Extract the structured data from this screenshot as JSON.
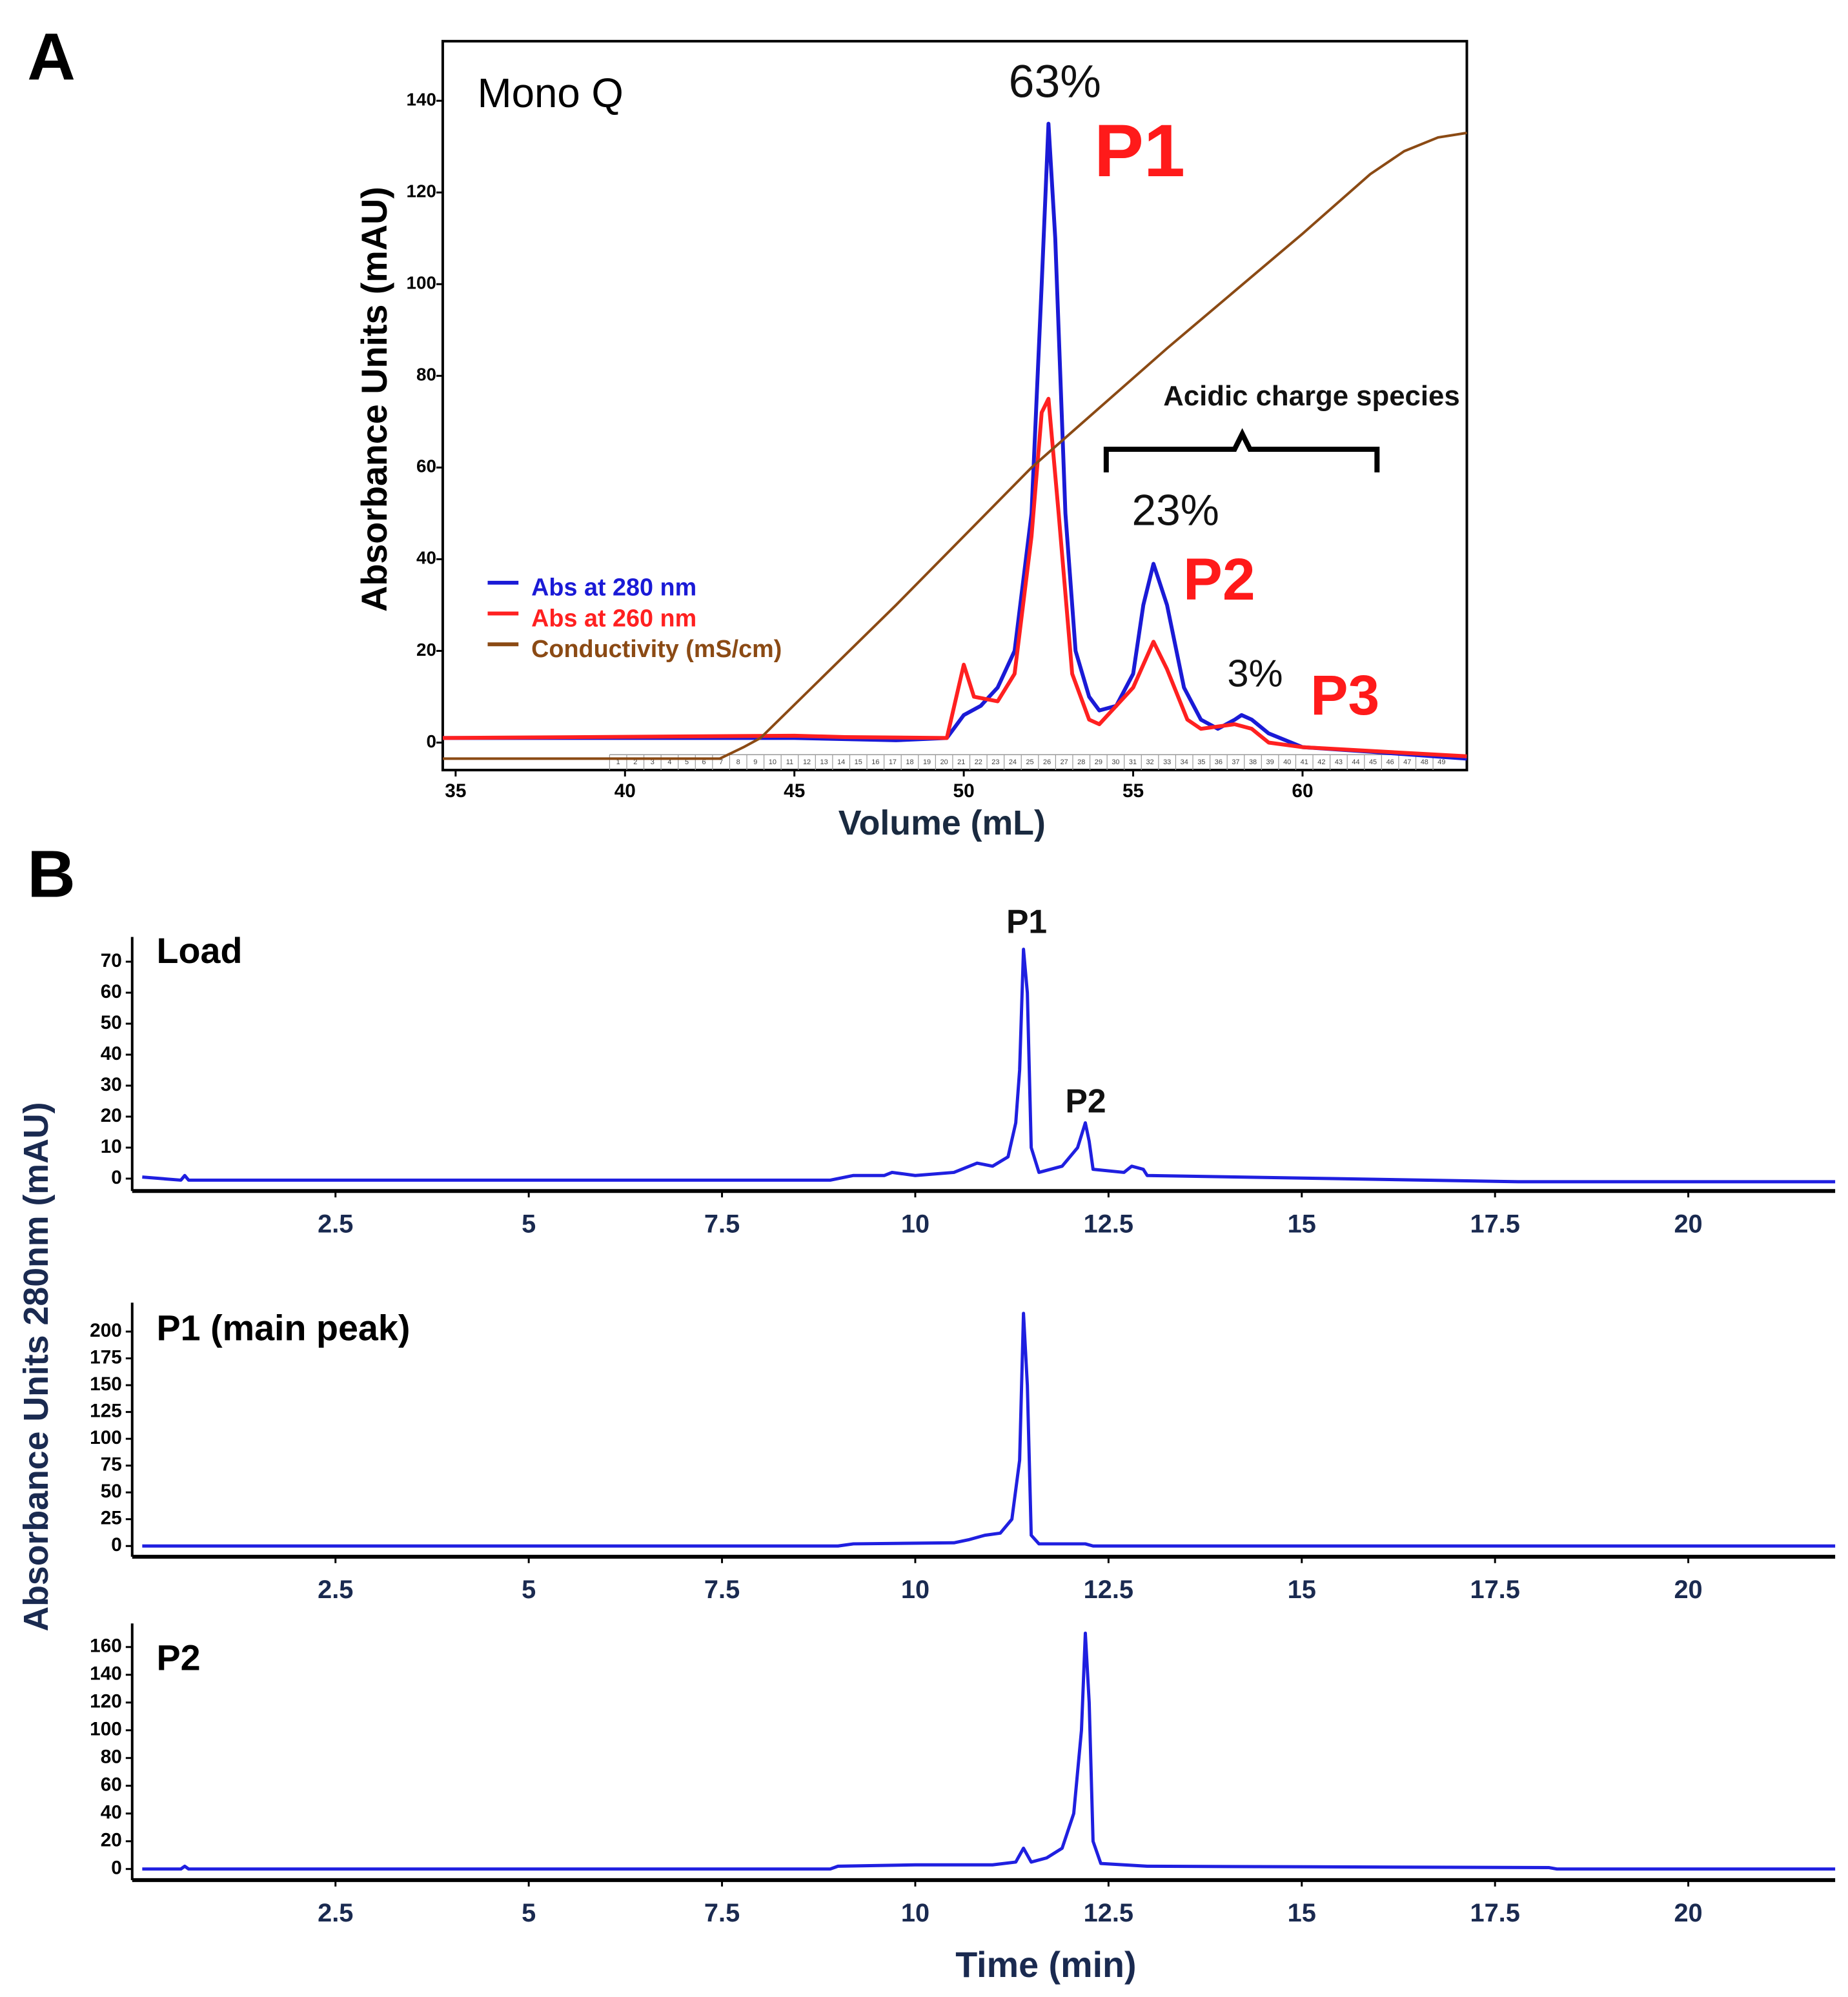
{
  "panel_a": {
    "label": "A"
  },
  "panel_b": {
    "label": "B",
    "ylabel": "Absorbance Units 280nm (mAU)",
    "xlabel": "Time (min)"
  },
  "chart_data": [
    {
      "type": "line",
      "title": "Mono Q",
      "xlabel": "Volume (mL)",
      "ylabel": "Absorbance Units (mAU)",
      "xlim": [
        34.62,
        64.85
      ],
      "ylim": [
        -6,
        153
      ],
      "xticks": [
        35,
        40,
        45,
        50,
        55,
        60
      ],
      "yticks": [
        0,
        20,
        40,
        60,
        80,
        100,
        120,
        140
      ],
      "legend": "left",
      "fractions": [
        1,
        2,
        3,
        4,
        5,
        6,
        7,
        8,
        9,
        10,
        11,
        12,
        13,
        14,
        15,
        16,
        17,
        18,
        19,
        20,
        21,
        22,
        23,
        24,
        25,
        26,
        27,
        28,
        29,
        30,
        31,
        32,
        33,
        34,
        35,
        36,
        37,
        38,
        39,
        40,
        41,
        42,
        43,
        44,
        45,
        46,
        47,
        48,
        49
      ],
      "annotations": [
        {
          "text": "63%",
          "color": "#111111"
        },
        {
          "text": "P1",
          "color": "#ff1a1a"
        },
        {
          "text": "Acidic charge species",
          "color": "#111111"
        },
        {
          "text": "23%",
          "color": "#111111"
        },
        {
          "text": "P2",
          "color": "#ff1a1a"
        },
        {
          "text": "3%",
          "color": "#111111"
        },
        {
          "text": "P3",
          "color": "#ff1a1a"
        }
      ],
      "series": [
        {
          "name": "Abs at 280 nm",
          "color": "#1a1ad6",
          "x": [
            34.62,
            40,
            45,
            48,
            49.5,
            50,
            50.5,
            51,
            51.5,
            52,
            52.3,
            52.5,
            52.7,
            53,
            53.3,
            53.7,
            54,
            54.5,
            55,
            55.3,
            55.6,
            56,
            56.5,
            57,
            57.5,
            58,
            58.2,
            58.5,
            59,
            60,
            62,
            64.85
          ],
          "values": [
            1,
            1,
            1,
            0.5,
            1,
            6,
            8,
            12,
            20,
            50,
            100,
            135,
            110,
            50,
            20,
            10,
            7,
            8,
            15,
            30,
            39,
            30,
            12,
            5,
            3,
            5,
            6,
            5,
            2,
            -1,
            -2,
            -3.5
          ]
        },
        {
          "name": "Abs at 260 nm",
          "color": "#ff2020",
          "x": [
            34.62,
            45,
            46.5,
            49.5,
            50,
            50.3,
            51,
            51.5,
            52,
            52.3,
            52.5,
            52.8,
            53.2,
            53.7,
            54,
            55,
            55.6,
            56,
            56.6,
            57,
            58,
            58.5,
            59,
            60,
            64.85
          ],
          "values": [
            1,
            1.5,
            1.2,
            1,
            17,
            10,
            9,
            15,
            45,
            72,
            75,
            50,
            15,
            5,
            4,
            12,
            22,
            16,
            5,
            3,
            4,
            3,
            0,
            -1,
            -3
          ]
        },
        {
          "name": "Conductivity (mS/cm)",
          "color": "#8b4a14",
          "x": [
            34.62,
            42.8,
            43.5,
            44,
            48,
            52,
            56,
            60,
            62,
            63,
            64,
            64.85
          ],
          "values": [
            -3.5,
            -3.5,
            -1,
            1,
            30,
            60,
            86,
            111,
            124,
            129,
            132,
            133
          ]
        }
      ]
    },
    {
      "type": "line",
      "title": "Load",
      "xlim": [
        -0.13,
        21.9
      ],
      "ylim": [
        -4,
        78
      ],
      "xticks": [
        2.5,
        5,
        7.5,
        10,
        12.5,
        15,
        17.5,
        20
      ],
      "yticks": [
        0,
        10,
        20,
        30,
        40,
        50,
        60,
        70
      ],
      "annotations": [
        {
          "text": "P1",
          "color": "#111111"
        },
        {
          "text": "P2",
          "color": "#111111"
        }
      ],
      "x": [
        0,
        0.5,
        0.55,
        0.6,
        8.9,
        9.2,
        9.6,
        9.7,
        10,
        10.5,
        10.8,
        11,
        11.2,
        11.3,
        11.35,
        11.4,
        11.45,
        11.5,
        11.6,
        11.9,
        12.1,
        12.2,
        12.25,
        12.3,
        12.7,
        12.8,
        12.95,
        13,
        15.4,
        17.8,
        21.9
      ],
      "series": [
        {
          "color": "#1f1fe0",
          "values": [
            0.5,
            -0.5,
            1,
            -0.5,
            -0.5,
            1,
            1,
            2,
            1,
            2,
            5,
            4,
            7,
            18,
            35,
            74,
            60,
            10,
            2,
            4,
            10,
            18,
            12,
            3,
            2,
            4,
            3,
            1,
            0,
            -1,
            -1
          ]
        }
      ]
    },
    {
      "type": "line",
      "title": "P1 (main peak)",
      "xlim": [
        -0.13,
        21.9
      ],
      "ylim": [
        -10,
        227
      ],
      "xticks": [
        2.5,
        5,
        7.5,
        10,
        12.5,
        15,
        17.5,
        20
      ],
      "yticks": [
        0,
        25,
        50,
        75,
        100,
        125,
        150,
        175,
        200
      ],
      "x": [
        0,
        9,
        9.2,
        10.5,
        10.7,
        10.9,
        11.1,
        11.25,
        11.35,
        11.4,
        11.45,
        11.5,
        11.6,
        12.2,
        12.3,
        21.9
      ],
      "series": [
        {
          "color": "#1f1fe0",
          "values": [
            0,
            0,
            2,
            3,
            6,
            10,
            12,
            25,
            80,
            217,
            150,
            10,
            2,
            2,
            0,
            0
          ]
        }
      ]
    },
    {
      "type": "line",
      "title": "P2",
      "xlim": [
        -0.13,
        21.9
      ],
      "ylim": [
        -8,
        177
      ],
      "xticks": [
        2.5,
        5,
        7.5,
        10,
        12.5,
        15,
        17.5,
        20
      ],
      "yticks": [
        0,
        20,
        40,
        60,
        80,
        100,
        120,
        140,
        160
      ],
      "x": [
        0,
        0.5,
        0.55,
        0.6,
        8.9,
        9,
        10,
        11,
        11.3,
        11.4,
        11.5,
        11.7,
        11.9,
        12.05,
        12.15,
        12.2,
        12.25,
        12.3,
        12.4,
        13,
        18.2,
        18.3,
        21.9
      ],
      "series": [
        {
          "color": "#1f1fe0",
          "values": [
            0,
            0,
            2,
            0,
            0,
            2,
            3,
            3,
            5,
            15,
            5,
            8,
            15,
            40,
            100,
            170,
            120,
            20,
            4,
            2,
            1,
            0,
            0
          ]
        }
      ]
    }
  ]
}
